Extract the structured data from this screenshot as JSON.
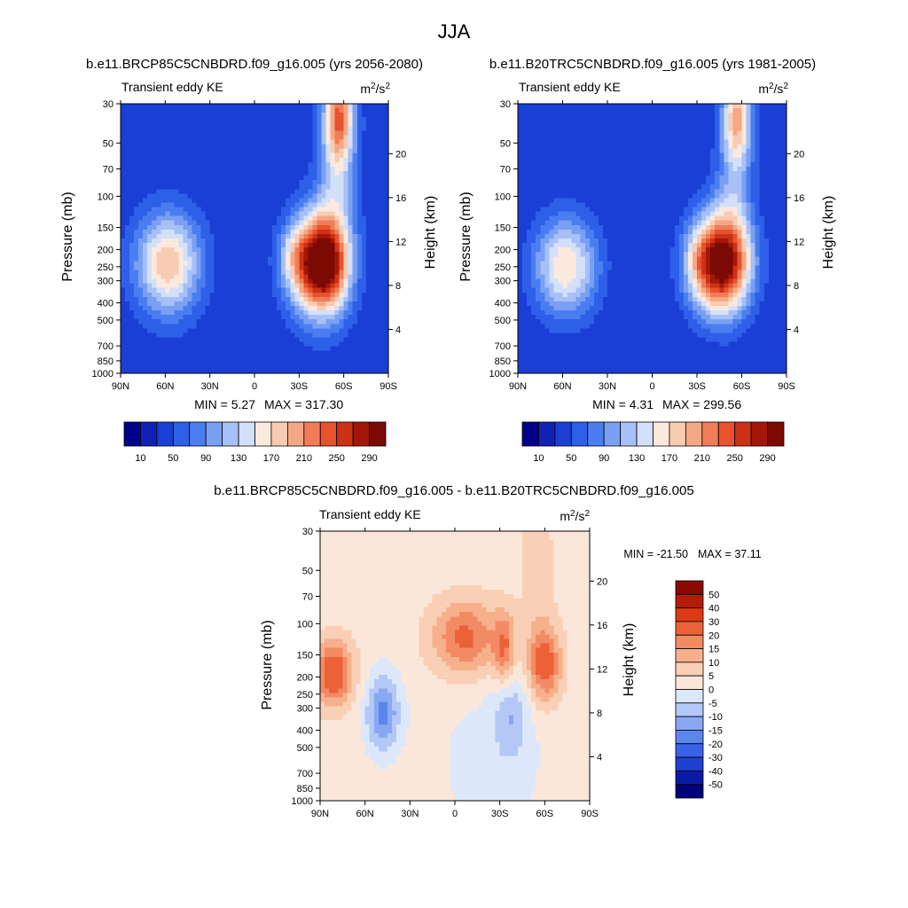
{
  "figure": {
    "title": "JJA"
  },
  "chart_data": [
    {
      "id": "future",
      "type": "heatmap",
      "title": "b.e11.BRCP85C5CNBDRD.f09_g16.005 (yrs 2056-2080)",
      "left_label": "Transient eddy KE",
      "units_base": "m",
      "units_exp1": "2",
      "units_mid": "/s",
      "units_exp2": "2",
      "ylabel": "Pressure (mb)",
      "y2label": "Height (km)",
      "xlabel": "",
      "x_ticks": [
        "90N",
        "60N",
        "30N",
        "0",
        "30S",
        "60S",
        "90S"
      ],
      "x_tick_values": [
        90,
        60,
        30,
        0,
        -30,
        -60,
        -90
      ],
      "y_ticks": [
        "30",
        "50",
        "70",
        "100",
        "150",
        "200",
        "250",
        "300",
        "400",
        "500",
        "700",
        "850",
        "1000"
      ],
      "y_tick_values": [
        30,
        50,
        70,
        100,
        150,
        200,
        250,
        300,
        400,
        500,
        700,
        850,
        1000
      ],
      "y2_ticks": [
        "20",
        "16",
        "12",
        "8",
        "4"
      ],
      "y2_tick_values": [
        20,
        16,
        12,
        8,
        4
      ],
      "min_text": "MIN =   5.27",
      "max_text": "MAX = 317.30",
      "min": 5.27,
      "max": 317.3,
      "colorbar_labels": [
        "10",
        "50",
        "90",
        "130",
        "170",
        "210",
        "250",
        "290"
      ],
      "colorbar_levels": [
        10,
        30,
        50,
        70,
        90,
        110,
        130,
        150,
        170,
        190,
        210,
        230,
        250,
        270,
        290
      ],
      "colorbar_colors": [
        "#00008a",
        "#0f22b5",
        "#1a3fd6",
        "#2d5fe8",
        "#4a7ef0",
        "#7aa0f4",
        "#a7c0f7",
        "#d3e0fa",
        "#fce9de",
        "#f8cbb3",
        "#f5a886",
        "#f07d57",
        "#e8522d",
        "#cd3215",
        "#a31709",
        "#7a0a03"
      ],
      "features": [
        {
          "lat": -43,
          "p": 240,
          "amp": 300,
          "wlat": 13,
          "wp": 0.45
        },
        {
          "lat": -25,
          "p": 220,
          "amp": 40,
          "wlat": 6,
          "wp": 0.25
        },
        {
          "lat": -55,
          "p": 280,
          "amp": 30,
          "wlat": 6,
          "wp": 0.3
        },
        {
          "lat": 58,
          "p": 240,
          "amp": 155,
          "wlat": 15,
          "wp": 0.45
        },
        {
          "lat": -57,
          "p": 35,
          "amp": 170,
          "wlat": 7,
          "wp": 0.45
        },
        {
          "lat": -55,
          "p": 90,
          "amp": 70,
          "wlat": 9,
          "wp": 0.8
        }
      ],
      "background": 35
    },
    {
      "id": "present",
      "type": "heatmap",
      "title": "b.e11.B20TRC5CNBDRD.f09_g16.005 (yrs 1981-2005)",
      "left_label": "Transient eddy KE",
      "units_base": "m",
      "units_exp1": "2",
      "units_mid": "/s",
      "units_exp2": "2",
      "ylabel": "Pressure (mb)",
      "y2label": "Height (km)",
      "xlabel": "",
      "x_ticks": [
        "90N",
        "60N",
        "30N",
        "0",
        "30S",
        "60S",
        "90S"
      ],
      "x_tick_values": [
        90,
        60,
        30,
        0,
        -30,
        -60,
        -90
      ],
      "y_ticks": [
        "30",
        "50",
        "70",
        "100",
        "150",
        "200",
        "250",
        "300",
        "400",
        "500",
        "700",
        "850",
        "1000"
      ],
      "y_tick_values": [
        30,
        50,
        70,
        100,
        150,
        200,
        250,
        300,
        400,
        500,
        700,
        850,
        1000
      ],
      "y2_ticks": [
        "20",
        "16",
        "12",
        "8",
        "4"
      ],
      "y2_tick_values": [
        20,
        16,
        12,
        8,
        4
      ],
      "min_text": "MIN =   4.31",
      "max_text": "MAX = 299.56",
      "min": 4.31,
      "max": 299.56,
      "colorbar_labels": [
        "10",
        "50",
        "90",
        "130",
        "170",
        "210",
        "250",
        "290"
      ],
      "colorbar_levels": [
        10,
        30,
        50,
        70,
        90,
        110,
        130,
        150,
        170,
        190,
        210,
        230,
        250,
        270,
        290
      ],
      "colorbar_colors": [
        "#00008a",
        "#0f22b5",
        "#1a3fd6",
        "#2d5fe8",
        "#4a7ef0",
        "#7aa0f4",
        "#a7c0f7",
        "#d3e0fa",
        "#fce9de",
        "#f8cbb3",
        "#f5a886",
        "#f07d57",
        "#e8522d",
        "#cd3215",
        "#a31709",
        "#7a0a03"
      ],
      "features": [
        {
          "lat": -45,
          "p": 240,
          "amp": 285,
          "wlat": 14,
          "wp": 0.45
        },
        {
          "lat": -30,
          "p": 230,
          "amp": 25,
          "wlat": 5,
          "wp": 0.25
        },
        {
          "lat": 58,
          "p": 250,
          "amp": 140,
          "wlat": 15,
          "wp": 0.45
        },
        {
          "lat": -57,
          "p": 35,
          "amp": 140,
          "wlat": 7,
          "wp": 0.45
        },
        {
          "lat": -55,
          "p": 90,
          "amp": 60,
          "wlat": 9,
          "wp": 0.8
        }
      ],
      "background": 30
    },
    {
      "id": "difference",
      "type": "heatmap",
      "title": "b.e11.BRCP85C5CNBDRD.f09_g16.005 - b.e11.B20TRC5CNBDRD.f09_g16.005",
      "left_label": "Transient eddy KE",
      "units_base": "m",
      "units_exp1": "2",
      "units_mid": "/s",
      "units_exp2": "2",
      "ylabel": "Pressure (mb)",
      "y2label": "Height (km)",
      "xlabel": "",
      "x_ticks": [
        "90N",
        "60N",
        "30N",
        "0",
        "30S",
        "60S",
        "90S"
      ],
      "x_tick_values": [
        90,
        60,
        30,
        0,
        -30,
        -60,
        -90
      ],
      "y_ticks": [
        "30",
        "50",
        "70",
        "100",
        "150",
        "200",
        "250",
        "300",
        "400",
        "500",
        "700",
        "850",
        "1000"
      ],
      "y_tick_values": [
        30,
        50,
        70,
        100,
        150,
        200,
        250,
        300,
        400,
        500,
        700,
        850,
        1000
      ],
      "y2_ticks": [
        "20",
        "16",
        "12",
        "8",
        "4"
      ],
      "y2_tick_values": [
        20,
        16,
        12,
        8,
        4
      ],
      "min_text": "MIN = -21.50",
      "max_text": "MAX =  37.11",
      "min": -21.5,
      "max": 37.11,
      "colorbar_labels": [
        "50",
        "40",
        "30",
        "20",
        "15",
        "10",
        "5",
        "0",
        "-5",
        "-10",
        "-15",
        "-20",
        "-30",
        "-40",
        "-50"
      ],
      "colorbar_levels": [
        -50,
        -40,
        -30,
        -20,
        -15,
        -10,
        -5,
        0,
        5,
        10,
        15,
        20,
        30,
        40,
        50
      ],
      "colorbar_colors": [
        "#00007a",
        "#0a1aa8",
        "#1f3fd0",
        "#3a62e6",
        "#5c86ee",
        "#88a8f2",
        "#b3c8f6",
        "#dce8fa",
        "#fbe7d9",
        "#f9d0b6",
        "#f6b08c",
        "#f28b63",
        "#ec6137",
        "#db3a14",
        "#b51c06",
        "#8a0a02"
      ],
      "features": [
        {
          "lat": -7,
          "p": 120,
          "amp": 20,
          "wlat": 16,
          "wp": 0.35
        },
        {
          "lat": 81,
          "p": 190,
          "amp": 24,
          "wlat": 9,
          "wp": 0.3
        },
        {
          "lat": -33,
          "p": 140,
          "amp": 16,
          "wlat": 5,
          "wp": 0.35
        },
        {
          "lat": -60,
          "p": 170,
          "amp": 22,
          "wlat": 8,
          "wp": 0.35
        },
        {
          "lat": -55,
          "p": 50,
          "amp": 6,
          "wlat": 8,
          "wp": 0.7
        },
        {
          "lat": 48,
          "p": 320,
          "amp": -19,
          "wlat": 8,
          "wp": 0.35
        },
        {
          "lat": -37,
          "p": 330,
          "amp": -10,
          "wlat": 8,
          "wp": 0.4
        },
        {
          "lat": -25,
          "p": 600,
          "amp": -4,
          "wlat": 30,
          "wp": 1.0
        }
      ],
      "background": 2.5
    }
  ]
}
